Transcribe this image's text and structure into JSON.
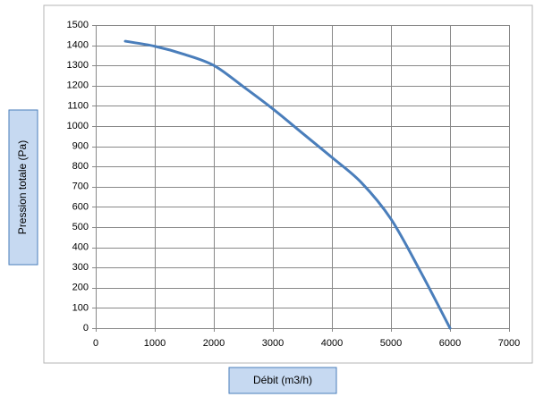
{
  "chart_data": {
    "type": "line",
    "title": "",
    "xlabel": "Débit (m3/h)",
    "ylabel": "Pression totale (Pa)",
    "xlim": [
      0,
      7000
    ],
    "ylim": [
      0,
      1500
    ],
    "x_ticks": [
      0,
      1000,
      2000,
      3000,
      4000,
      5000,
      6000,
      7000
    ],
    "y_ticks": [
      0,
      100,
      200,
      300,
      400,
      500,
      600,
      700,
      800,
      900,
      1000,
      1100,
      1200,
      1300,
      1400,
      1500
    ],
    "grid": true,
    "legend": "none",
    "series": [
      {
        "color": "#4a7ebb",
        "x": [
          500,
          1000,
          1500,
          2000,
          2500,
          3000,
          3500,
          4000,
          4500,
          5000,
          5500,
          6000
        ],
        "y": [
          1420,
          1395,
          1355,
          1300,
          1195,
          1085,
          965,
          845,
          720,
          540,
          280,
          0
        ]
      }
    ]
  },
  "colors": {
    "line": "#4a7ebb",
    "grid": "#888888",
    "label_box_fill": "#c6d9f1",
    "label_box_border": "#4a7ebb"
  }
}
